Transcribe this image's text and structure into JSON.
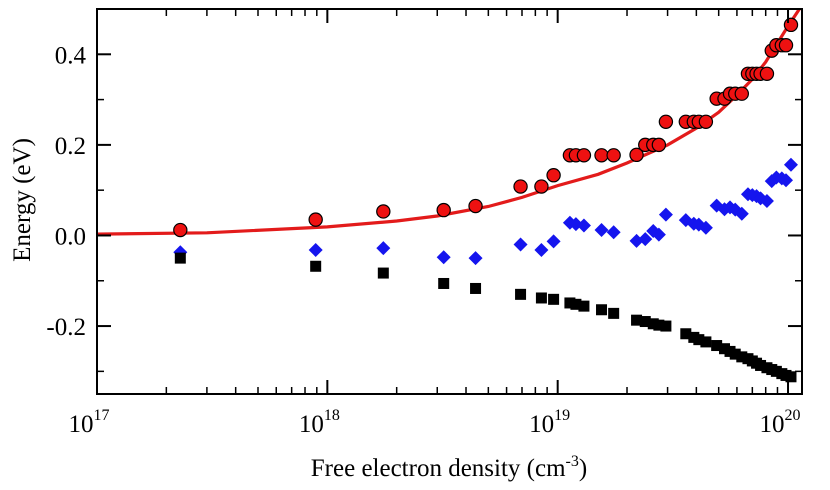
{
  "chart_data": {
    "type": "scatter",
    "xlabel": "Free electron density (cm",
    "xlabel_sup": "-3",
    "xlabel_tail": ")",
    "ylabel": "Energy (eV)",
    "xscale": "log",
    "xlim": [
      1e+17,
      1.15e+20
    ],
    "ylim": [
      -0.35,
      0.5
    ],
    "x_ticks": [
      {
        "value": 1e+17,
        "base": "10",
        "exp": "17"
      },
      {
        "value": 1e+18,
        "base": "10",
        "exp": "18"
      },
      {
        "value": 1e+19,
        "base": "10",
        "exp": "19"
      },
      {
        "value": 1e+20,
        "base": "10",
        "exp": "20"
      }
    ],
    "y_ticks": [
      {
        "value": 0.4,
        "label": "0.4"
      },
      {
        "value": 0.2,
        "label": "0.2"
      },
      {
        "value": 0.0,
        "label": "0.0"
      },
      {
        "value": -0.2,
        "label": "-0.2"
      }
    ],
    "grid": false,
    "colors": {
      "circles": "#ee1111",
      "diamonds": "#1515ee",
      "squares": "#000000",
      "curve": "#e31b1b"
    },
    "series": [
      {
        "marker": "circle",
        "points": [
          [
            2.3e+17,
            0.012
          ],
          [
            8.9e+17,
            0.035
          ],
          [
            1.75e+18,
            0.053
          ],
          [
            3.2e+18,
            0.056
          ],
          [
            4.4e+18,
            0.065
          ],
          [
            6.9e+18,
            0.108
          ],
          [
            8.5e+18,
            0.108
          ],
          [
            9.6e+18,
            0.133
          ],
          [
            1.13e+19,
            0.177
          ],
          [
            1.2e+19,
            0.177
          ],
          [
            1.3e+19,
            0.177
          ],
          [
            1.55e+19,
            0.177
          ],
          [
            1.75e+19,
            0.177
          ],
          [
            2.2e+19,
            0.178
          ],
          [
            2.4e+19,
            0.2
          ],
          [
            2.6e+19,
            0.2
          ],
          [
            2.75e+19,
            0.2
          ],
          [
            2.95e+19,
            0.251
          ],
          [
            3.6e+19,
            0.251
          ],
          [
            3.9e+19,
            0.251
          ],
          [
            4.1e+19,
            0.251
          ],
          [
            4.4e+19,
            0.251
          ],
          [
            4.9e+19,
            0.302
          ],
          [
            5.3e+19,
            0.302
          ],
          [
            5.6e+19,
            0.313
          ],
          [
            5.9e+19,
            0.313
          ],
          [
            6.3e+19,
            0.313
          ],
          [
            6.7e+19,
            0.357
          ],
          [
            7e+19,
            0.357
          ],
          [
            7.3e+19,
            0.357
          ],
          [
            7.6e+19,
            0.357
          ],
          [
            8.1e+19,
            0.357
          ],
          [
            8.5e+19,
            0.408
          ],
          [
            8.9e+19,
            0.42
          ],
          [
            9.4e+19,
            0.42
          ],
          [
            9.8e+19,
            0.42
          ],
          [
            1.03e+20,
            0.465
          ]
        ]
      },
      {
        "marker": "diamond",
        "points": [
          [
            2.3e+17,
            -0.037
          ],
          [
            8.9e+17,
            -0.032
          ],
          [
            1.75e+18,
            -0.028
          ],
          [
            3.2e+18,
            -0.048
          ],
          [
            4.4e+18,
            -0.05
          ],
          [
            6.9e+18,
            -0.02
          ],
          [
            8.5e+18,
            -0.032
          ],
          [
            9.6e+18,
            -0.013
          ],
          [
            1.13e+19,
            0.028
          ],
          [
            1.2e+19,
            0.025
          ],
          [
            1.3e+19,
            0.022
          ],
          [
            1.55e+19,
            0.012
          ],
          [
            1.75e+19,
            0.007
          ],
          [
            2.2e+19,
            -0.012
          ],
          [
            2.4e+19,
            -0.008
          ],
          [
            2.6e+19,
            0.01
          ],
          [
            2.75e+19,
            0.002
          ],
          [
            2.95e+19,
            0.046
          ],
          [
            3.6e+19,
            0.034
          ],
          [
            3.9e+19,
            0.026
          ],
          [
            4.1e+19,
            0.024
          ],
          [
            4.4e+19,
            0.017
          ],
          [
            4.9e+19,
            0.066
          ],
          [
            5.3e+19,
            0.058
          ],
          [
            5.6e+19,
            0.062
          ],
          [
            5.9e+19,
            0.057
          ],
          [
            6.3e+19,
            0.048
          ],
          [
            6.7e+19,
            0.091
          ],
          [
            7e+19,
            0.089
          ],
          [
            7.3e+19,
            0.087
          ],
          [
            7.6e+19,
            0.082
          ],
          [
            8.1e+19,
            0.076
          ],
          [
            8.5e+19,
            0.12
          ],
          [
            8.9e+19,
            0.128
          ],
          [
            9.4e+19,
            0.126
          ],
          [
            9.8e+19,
            0.122
          ],
          [
            1.03e+20,
            0.156
          ]
        ]
      },
      {
        "marker": "square",
        "points": [
          [
            2.3e+17,
            -0.05
          ],
          [
            8.9e+17,
            -0.068
          ],
          [
            1.75e+18,
            -0.083
          ],
          [
            3.2e+18,
            -0.106
          ],
          [
            4.4e+18,
            -0.117
          ],
          [
            6.9e+18,
            -0.13
          ],
          [
            8.5e+18,
            -0.138
          ],
          [
            9.6e+18,
            -0.141
          ],
          [
            1.13e+19,
            -0.149
          ],
          [
            1.2e+19,
            -0.152
          ],
          [
            1.3e+19,
            -0.156
          ],
          [
            1.55e+19,
            -0.164
          ],
          [
            1.75e+19,
            -0.172
          ],
          [
            2.2e+19,
            -0.187
          ],
          [
            2.4e+19,
            -0.19
          ],
          [
            2.6e+19,
            -0.195
          ],
          [
            2.75e+19,
            -0.198
          ],
          [
            2.95e+19,
            -0.2
          ],
          [
            3.6e+19,
            -0.217
          ],
          [
            3.9e+19,
            -0.225
          ],
          [
            4.1e+19,
            -0.23
          ],
          [
            4.4e+19,
            -0.235
          ],
          [
            4.9e+19,
            -0.243
          ],
          [
            5.3e+19,
            -0.25
          ],
          [
            5.6e+19,
            -0.256
          ],
          [
            5.9e+19,
            -0.262
          ],
          [
            6.3e+19,
            -0.268
          ],
          [
            6.7e+19,
            -0.272
          ],
          [
            7e+19,
            -0.277
          ],
          [
            7.3e+19,
            -0.282
          ],
          [
            7.6e+19,
            -0.287
          ],
          [
            8.1e+19,
            -0.292
          ],
          [
            8.5e+19,
            -0.296
          ],
          [
            8.9e+19,
            -0.3
          ],
          [
            9.4e+19,
            -0.305
          ],
          [
            9.8e+19,
            -0.309
          ],
          [
            1.03e+20,
            -0.312
          ]
        ]
      },
      {
        "marker": "line",
        "points": [
          [
            1e+17,
            0.003
          ],
          [
            3e+17,
            0.006
          ],
          [
            1e+18,
            0.019
          ],
          [
            2e+18,
            0.032
          ],
          [
            3e+18,
            0.043
          ],
          [
            5e+18,
            0.064
          ],
          [
            7e+18,
            0.084
          ],
          [
            1e+19,
            0.11
          ],
          [
            1.5e+19,
            0.135
          ],
          [
            2e+19,
            0.16
          ],
          [
            3e+19,
            0.2
          ],
          [
            4e+19,
            0.237
          ],
          [
            5e+19,
            0.272
          ],
          [
            6e+19,
            0.31
          ],
          [
            7e+19,
            0.345
          ],
          [
            8e+19,
            0.383
          ],
          [
            9e+19,
            0.425
          ],
          [
            1e+20,
            0.462
          ],
          [
            1.12e+20,
            0.5
          ]
        ]
      }
    ]
  }
}
